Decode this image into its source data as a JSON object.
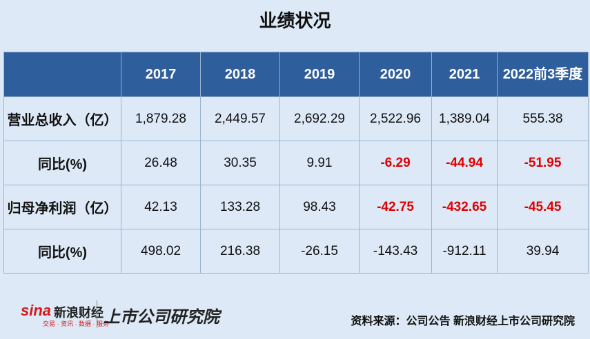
{
  "header": {
    "title": "业绩状况"
  },
  "table": {
    "columns": [
      "",
      "2017",
      "2018",
      "2019",
      "2020",
      "2021",
      "2022前3季度"
    ],
    "rows": [
      {
        "label": "营业总收入（亿）",
        "cells": [
          "1,879.28",
          "2,449.57",
          "2,692.29",
          "2,522.96",
          "1,389.04",
          "555.38"
        ]
      },
      {
        "label": "同比(%)",
        "cells": [
          "26.48",
          "30.35",
          "9.91",
          {
            "text": "-6.29",
            "color": "#e00000"
          },
          {
            "text": "-44.94",
            "color": "#e00000"
          },
          {
            "text": "-51.95",
            "color": "#e00000"
          }
        ]
      },
      {
        "label": "归母净利润（亿）",
        "cells": [
          "42.13",
          "133.28",
          "98.43",
          {
            "text": "-42.75",
            "color": "#e00000"
          },
          {
            "text": "-432.65",
            "color": "#e00000"
          },
          {
            "text": "-45.45",
            "color": "#e00000"
          }
        ]
      },
      {
        "label": "同比(%)",
        "cells": [
          "498.02",
          "216.38",
          "-26.15",
          "-143.43",
          "-912.11",
          "39.94"
        ]
      }
    ]
  },
  "footer": {
    "logo_sina": "sina",
    "logo_brand": "新浪财经",
    "logo_tags": "交易 · 资讯 · 数据 · 服务",
    "logo_institute": "上市公司研究院",
    "source": "资料来源：公司公告 新浪财经上市公司研究院"
  }
}
